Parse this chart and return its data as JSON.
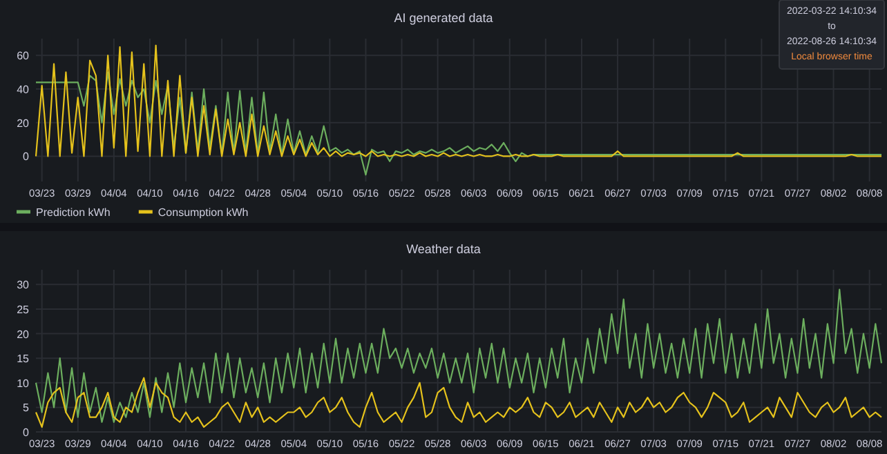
{
  "chart_data": [
    {
      "type": "line",
      "title": "AI generated data",
      "annotations": [
        "2022-03-22 14:10:34",
        "to",
        "2022-08-26 14:10:34",
        "Local browser time"
      ],
      "x": [
        "2022-03-22",
        "2022-03-23",
        "2022-03-24",
        "2022-03-25",
        "2022-03-26",
        "2022-03-27",
        "2022-03-28",
        "2022-03-29",
        "2022-03-30",
        "2022-03-31",
        "2022-04-01",
        "2022-04-02",
        "2022-04-03",
        "2022-04-04",
        "2022-04-05",
        "2022-04-06",
        "2022-04-07",
        "2022-04-08",
        "2022-04-09",
        "2022-04-10",
        "2022-04-11",
        "2022-04-12",
        "2022-04-13",
        "2022-04-14",
        "2022-04-15",
        "2022-04-16",
        "2022-04-17",
        "2022-04-18",
        "2022-04-19",
        "2022-04-20",
        "2022-04-21",
        "2022-04-22",
        "2022-04-23",
        "2022-04-24",
        "2022-04-25",
        "2022-04-26",
        "2022-04-27",
        "2022-04-28",
        "2022-04-29",
        "2022-04-30",
        "2022-05-01",
        "2022-05-02",
        "2022-05-03",
        "2022-05-04",
        "2022-05-05",
        "2022-05-06",
        "2022-05-07",
        "2022-05-08",
        "2022-05-09",
        "2022-05-10",
        "2022-05-11",
        "2022-05-12",
        "2022-05-13",
        "2022-05-14",
        "2022-05-15",
        "2022-05-16",
        "2022-05-17",
        "2022-05-18",
        "2022-05-19",
        "2022-05-20",
        "2022-05-21",
        "2022-05-22",
        "2022-05-23",
        "2022-05-24",
        "2022-05-25",
        "2022-05-26",
        "2022-05-27",
        "2022-05-28",
        "2022-05-29",
        "2022-05-30",
        "2022-05-31",
        "2022-06-01",
        "2022-06-02",
        "2022-06-03",
        "2022-06-04",
        "2022-06-05",
        "2022-06-06",
        "2022-06-07",
        "2022-06-08",
        "2022-06-09",
        "2022-06-10",
        "2022-06-11",
        "2022-06-12",
        "2022-06-13",
        "2022-06-14",
        "2022-06-15",
        "2022-06-16",
        "2022-06-17",
        "2022-06-18",
        "2022-06-19",
        "2022-06-20",
        "2022-06-21",
        "2022-06-22",
        "2022-06-23",
        "2022-06-24",
        "2022-06-25",
        "2022-06-26",
        "2022-06-27",
        "2022-06-28",
        "2022-06-29",
        "2022-06-30",
        "2022-07-01",
        "2022-07-02",
        "2022-07-03",
        "2022-07-04",
        "2022-07-05",
        "2022-07-06",
        "2022-07-07",
        "2022-07-08",
        "2022-07-09",
        "2022-07-10",
        "2022-07-11",
        "2022-07-12",
        "2022-07-13",
        "2022-07-14",
        "2022-07-15",
        "2022-07-16",
        "2022-07-17",
        "2022-07-18",
        "2022-07-19",
        "2022-07-20",
        "2022-07-21",
        "2022-07-22",
        "2022-07-23",
        "2022-07-24",
        "2022-07-25",
        "2022-07-26",
        "2022-07-27",
        "2022-07-28",
        "2022-07-29",
        "2022-07-30",
        "2022-07-31",
        "2022-08-01",
        "2022-08-02",
        "2022-08-03",
        "2022-08-04",
        "2022-08-05",
        "2022-08-06",
        "2022-08-07",
        "2022-08-08",
        "2022-08-09",
        "2022-08-10"
      ],
      "series": [
        {
          "name": "Prediction kWh",
          "color": "#6cae5e",
          "values": [
            44,
            44,
            44,
            44,
            44,
            44,
            44,
            44,
            30,
            48,
            45,
            20,
            50,
            25,
            46,
            30,
            45,
            35,
            40,
            20,
            45,
            25,
            42,
            5,
            35,
            2,
            38,
            3,
            40,
            5,
            30,
            1,
            38,
            2,
            39,
            2,
            35,
            1,
            38,
            3,
            25,
            1,
            22,
            2,
            15,
            1,
            12,
            2,
            18,
            3,
            5,
            2,
            4,
            1,
            3,
            -11,
            4,
            2,
            3,
            -3,
            3,
            2,
            4,
            1,
            3,
            2,
            4,
            2,
            3,
            5,
            2,
            4,
            6,
            3,
            5,
            4,
            7,
            3,
            8,
            2,
            -3,
            2,
            0,
            1,
            1,
            1,
            1,
            1,
            1,
            1,
            1,
            1,
            1,
            1,
            1,
            1,
            1,
            1,
            1,
            1,
            1,
            1,
            1,
            1,
            1,
            1,
            1,
            1,
            1,
            1,
            1,
            1,
            1,
            1,
            1,
            1,
            1,
            1,
            1,
            1,
            1,
            1,
            1,
            1,
            1,
            1,
            1,
            1,
            1,
            1,
            1,
            1,
            1,
            1,
            1,
            1,
            1,
            1,
            1,
            1,
            1,
            1
          ]
        },
        {
          "name": "Consumption kWh",
          "color": "#e5c21c",
          "values": [
            0,
            42,
            0,
            55,
            0,
            50,
            2,
            35,
            0,
            57,
            48,
            0,
            60,
            5,
            65,
            0,
            62,
            3,
            55,
            0,
            66,
            0,
            45,
            0,
            48,
            2,
            35,
            0,
            30,
            1,
            28,
            0,
            22,
            1,
            20,
            0,
            25,
            0,
            18,
            1,
            15,
            0,
            12,
            1,
            10,
            0,
            8,
            1,
            5,
            0,
            3,
            0,
            2,
            1,
            2,
            0,
            3,
            0,
            1,
            0,
            1,
            0,
            1,
            0,
            2,
            0,
            1,
            0,
            2,
            0,
            1,
            0,
            1,
            0,
            1,
            0,
            0,
            1,
            0,
            0,
            1,
            0,
            0,
            1,
            0,
            0,
            0,
            1,
            0,
            0,
            0,
            0,
            0,
            0,
            0,
            0,
            0,
            3,
            0,
            0,
            0,
            0,
            0,
            0,
            0,
            0,
            0,
            0,
            0,
            0,
            0,
            0,
            0,
            0,
            0,
            0,
            0,
            2,
            0,
            0,
            0,
            0,
            0,
            0,
            0,
            0,
            0,
            0,
            0,
            0,
            0,
            0,
            0,
            0,
            0,
            0,
            1,
            0,
            0,
            0,
            0,
            0
          ]
        }
      ],
      "xlim": [
        "2022-03-22",
        "2022-08-10"
      ],
      "xticks": [
        {
          "value": "2022-03-23",
          "label": "03/23"
        },
        {
          "value": "2022-03-29",
          "label": "03/29"
        },
        {
          "value": "2022-04-04",
          "label": "04/04"
        },
        {
          "value": "2022-04-10",
          "label": "04/10"
        },
        {
          "value": "2022-04-16",
          "label": "04/16"
        },
        {
          "value": "2022-04-22",
          "label": "04/22"
        },
        {
          "value": "2022-04-28",
          "label": "04/28"
        },
        {
          "value": "2022-05-04",
          "label": "05/04"
        },
        {
          "value": "2022-05-10",
          "label": "05/10"
        },
        {
          "value": "2022-05-16",
          "label": "05/16"
        },
        {
          "value": "2022-05-22",
          "label": "05/22"
        },
        {
          "value": "2022-05-28",
          "label": "05/28"
        },
        {
          "value": "2022-06-03",
          "label": "06/03"
        },
        {
          "value": "2022-06-09",
          "label": "06/09"
        },
        {
          "value": "2022-06-15",
          "label": "06/15"
        },
        {
          "value": "2022-06-21",
          "label": "06/21"
        },
        {
          "value": "2022-06-27",
          "label": "06/27"
        },
        {
          "value": "2022-07-03",
          "label": "07/03"
        },
        {
          "value": "2022-07-09",
          "label": "07/09"
        },
        {
          "value": "2022-07-15",
          "label": "07/15"
        },
        {
          "value": "2022-07-21",
          "label": "07/21"
        },
        {
          "value": "2022-07-27",
          "label": "07/27"
        },
        {
          "value": "2022-08-02",
          "label": "08/02"
        },
        {
          "value": "2022-08-08",
          "label": "08/08"
        }
      ],
      "ylim": [
        -15,
        70
      ],
      "yticks": [
        0,
        20,
        40,
        60
      ],
      "grid": true,
      "legend": "bottom"
    },
    {
      "type": "line",
      "title": "Weather data",
      "x": [
        "2022-03-22",
        "2022-03-23",
        "2022-03-24",
        "2022-03-25",
        "2022-03-26",
        "2022-03-27",
        "2022-03-28",
        "2022-03-29",
        "2022-03-30",
        "2022-03-31",
        "2022-04-01",
        "2022-04-02",
        "2022-04-03",
        "2022-04-04",
        "2022-04-05",
        "2022-04-06",
        "2022-04-07",
        "2022-04-08",
        "2022-04-09",
        "2022-04-10",
        "2022-04-11",
        "2022-04-12",
        "2022-04-13",
        "2022-04-14",
        "2022-04-15",
        "2022-04-16",
        "2022-04-17",
        "2022-04-18",
        "2022-04-19",
        "2022-04-20",
        "2022-04-21",
        "2022-04-22",
        "2022-04-23",
        "2022-04-24",
        "2022-04-25",
        "2022-04-26",
        "2022-04-27",
        "2022-04-28",
        "2022-04-29",
        "2022-04-30",
        "2022-05-01",
        "2022-05-02",
        "2022-05-03",
        "2022-05-04",
        "2022-05-05",
        "2022-05-06",
        "2022-05-07",
        "2022-05-08",
        "2022-05-09",
        "2022-05-10",
        "2022-05-11",
        "2022-05-12",
        "2022-05-13",
        "2022-05-14",
        "2022-05-15",
        "2022-05-16",
        "2022-05-17",
        "2022-05-18",
        "2022-05-19",
        "2022-05-20",
        "2022-05-21",
        "2022-05-22",
        "2022-05-23",
        "2022-05-24",
        "2022-05-25",
        "2022-05-26",
        "2022-05-27",
        "2022-05-28",
        "2022-05-29",
        "2022-05-30",
        "2022-05-31",
        "2022-06-01",
        "2022-06-02",
        "2022-06-03",
        "2022-06-04",
        "2022-06-05",
        "2022-06-06",
        "2022-06-07",
        "2022-06-08",
        "2022-06-09",
        "2022-06-10",
        "2022-06-11",
        "2022-06-12",
        "2022-06-13",
        "2022-06-14",
        "2022-06-15",
        "2022-06-16",
        "2022-06-17",
        "2022-06-18",
        "2022-06-19",
        "2022-06-20",
        "2022-06-21",
        "2022-06-22",
        "2022-06-23",
        "2022-06-24",
        "2022-06-25",
        "2022-06-26",
        "2022-06-27",
        "2022-06-28",
        "2022-06-29",
        "2022-06-30",
        "2022-07-01",
        "2022-07-02",
        "2022-07-03",
        "2022-07-04",
        "2022-07-05",
        "2022-07-06",
        "2022-07-07",
        "2022-07-08",
        "2022-07-09",
        "2022-07-10",
        "2022-07-11",
        "2022-07-12",
        "2022-07-13",
        "2022-07-14",
        "2022-07-15",
        "2022-07-16",
        "2022-07-17",
        "2022-07-18",
        "2022-07-19",
        "2022-07-20",
        "2022-07-21",
        "2022-07-22",
        "2022-07-23",
        "2022-07-24",
        "2022-07-25",
        "2022-07-26",
        "2022-07-27",
        "2022-07-28",
        "2022-07-29",
        "2022-07-30",
        "2022-07-31",
        "2022-08-01",
        "2022-08-02",
        "2022-08-03",
        "2022-08-04",
        "2022-08-05",
        "2022-08-06",
        "2022-08-07",
        "2022-08-08",
        "2022-08-09",
        "2022-08-10"
      ],
      "series": [
        {
          "color": "#6cae5e",
          "values": [
            10,
            4,
            12,
            5,
            15,
            4,
            13,
            3,
            12,
            4,
            9,
            2,
            7,
            2,
            6,
            3,
            8,
            4,
            10,
            3,
            11,
            4,
            12,
            5,
            14,
            6,
            13,
            7,
            14,
            6,
            16,
            8,
            16,
            7,
            15,
            8,
            13,
            7,
            14,
            6,
            15,
            8,
            16,
            9,
            17,
            8,
            16,
            9,
            18,
            10,
            19,
            10,
            17,
            11,
            18,
            12,
            18,
            12,
            21,
            15,
            17,
            13,
            17,
            12,
            16,
            13,
            17,
            11,
            16,
            10,
            15,
            10,
            16,
            8,
            17,
            11,
            18,
            10,
            17,
            9,
            15,
            10,
            16,
            8,
            15,
            9,
            17,
            11,
            19,
            8,
            15,
            10,
            19,
            12,
            21,
            14,
            24,
            16,
            27,
            13,
            20,
            11,
            22,
            13,
            20,
            12,
            18,
            11,
            19,
            12,
            21,
            11,
            22,
            14,
            23,
            12,
            20,
            11,
            19,
            12,
            22,
            13,
            25,
            14,
            20,
            11,
            19,
            12,
            23,
            13,
            20,
            11,
            22,
            14,
            29,
            16,
            21,
            12,
            20,
            13,
            22,
            14
          ]
        },
        {
          "color": "#e5c21c",
          "values": [
            4,
            1,
            6,
            8,
            9,
            4,
            2,
            7,
            8,
            3,
            3,
            5,
            8,
            3,
            2,
            5,
            4,
            8,
            11,
            5,
            10,
            8,
            7,
            3,
            2,
            4,
            2,
            3,
            1,
            2,
            3,
            5,
            6,
            4,
            2,
            6,
            3,
            5,
            2,
            3,
            2,
            3,
            4,
            4,
            5,
            3,
            4,
            6,
            7,
            4,
            5,
            7,
            4,
            2,
            1,
            5,
            8,
            4,
            2,
            3,
            4,
            2,
            5,
            7,
            10,
            3,
            4,
            8,
            9,
            5,
            3,
            2,
            6,
            3,
            4,
            2,
            3,
            4,
            3,
            5,
            4,
            5,
            7,
            4,
            3,
            6,
            5,
            3,
            4,
            6,
            3,
            4,
            5,
            3,
            6,
            4,
            2,
            5,
            3,
            6,
            4,
            5,
            7,
            5,
            6,
            4,
            5,
            7,
            8,
            6,
            5,
            3,
            5,
            8,
            7,
            6,
            3,
            4,
            6,
            2,
            3,
            4,
            5,
            3,
            7,
            5,
            3,
            8,
            6,
            4,
            3,
            5,
            6,
            4,
            5,
            7,
            3,
            4,
            5,
            3,
            4,
            3
          ]
        }
      ],
      "xlim": [
        "2022-03-22",
        "2022-08-10"
      ],
      "xticks": [
        {
          "value": "2022-03-23",
          "label": "03/23"
        },
        {
          "value": "2022-03-29",
          "label": "03/29"
        },
        {
          "value": "2022-04-04",
          "label": "04/04"
        },
        {
          "value": "2022-04-10",
          "label": "04/10"
        },
        {
          "value": "2022-04-16",
          "label": "04/16"
        },
        {
          "value": "2022-04-22",
          "label": "04/22"
        },
        {
          "value": "2022-04-28",
          "label": "04/28"
        },
        {
          "value": "2022-05-04",
          "label": "05/04"
        },
        {
          "value": "2022-05-10",
          "label": "05/10"
        },
        {
          "value": "2022-05-16",
          "label": "05/16"
        },
        {
          "value": "2022-05-22",
          "label": "05/22"
        },
        {
          "value": "2022-05-28",
          "label": "05/28"
        },
        {
          "value": "2022-06-03",
          "label": "06/03"
        },
        {
          "value": "2022-06-09",
          "label": "06/09"
        },
        {
          "value": "2022-06-15",
          "label": "06/15"
        },
        {
          "value": "2022-06-21",
          "label": "06/21"
        },
        {
          "value": "2022-06-27",
          "label": "06/27"
        },
        {
          "value": "2022-07-03",
          "label": "07/03"
        },
        {
          "value": "2022-07-09",
          "label": "07/09"
        },
        {
          "value": "2022-07-15",
          "label": "07/15"
        },
        {
          "value": "2022-07-21",
          "label": "07/21"
        },
        {
          "value": "2022-07-27",
          "label": "07/27"
        },
        {
          "value": "2022-08-02",
          "label": "08/02"
        },
        {
          "value": "2022-08-08",
          "label": "08/08"
        }
      ],
      "ylim": [
        0,
        33
      ],
      "yticks": [
        0,
        5,
        10,
        15,
        20,
        25,
        30
      ],
      "grid": true
    }
  ]
}
